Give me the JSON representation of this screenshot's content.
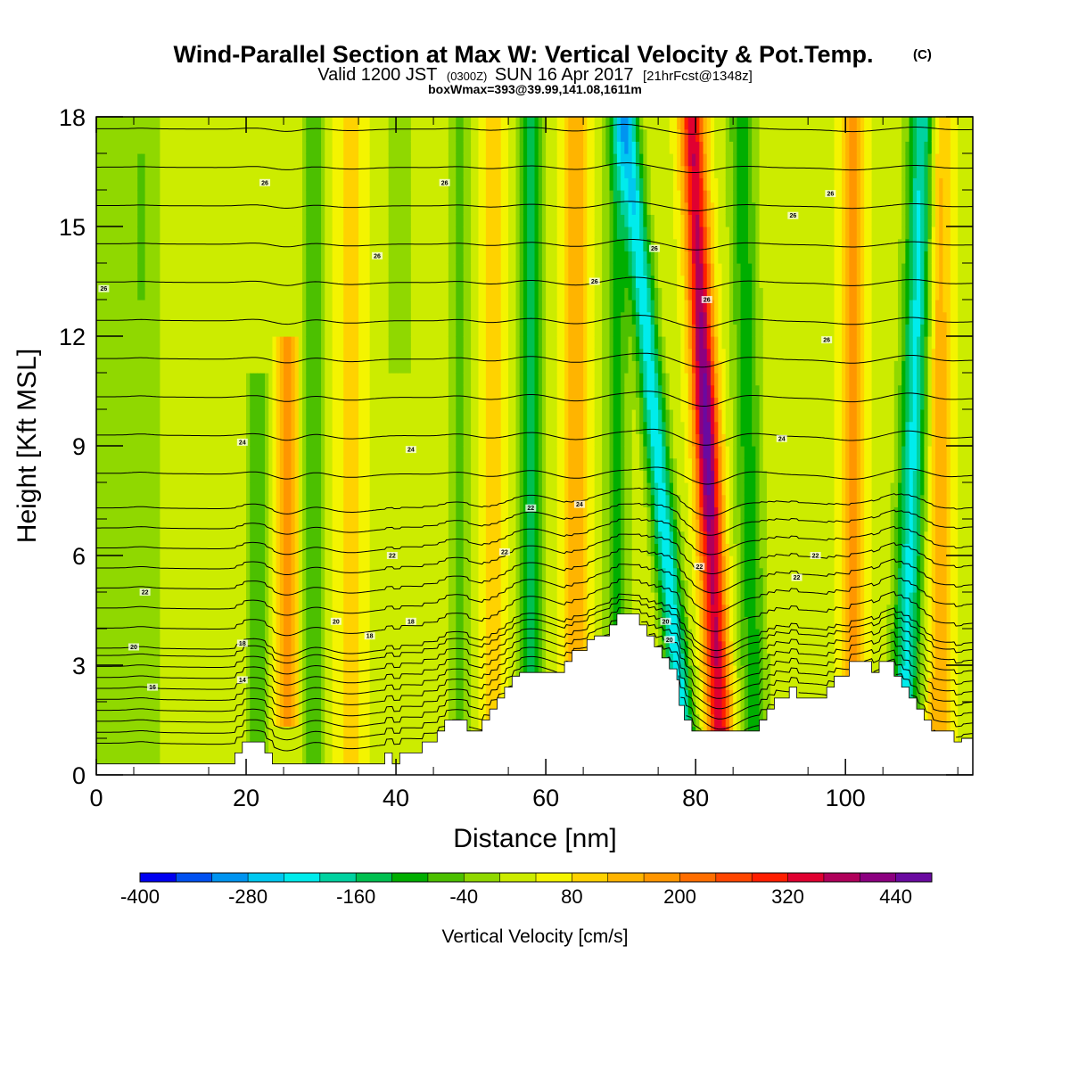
{
  "header": {
    "title": "Wind-Parallel Section at Max W: Vertical Velocity & Pot.Temp.",
    "copyright": "(C)",
    "valid_prefix": "Valid 1200 JST",
    "valid_utc": "(0300Z)",
    "valid_date": "SUN 16 Apr 2017",
    "forecast": "[21hrFcst@1348z]",
    "box_info": "boxWmax=393@39.99,141.08,1611m"
  },
  "chart_data": {
    "type": "heatmap",
    "title": "Wind-Parallel Section at Max W: Vertical Velocity & Pot.Temp.",
    "xlabel": "Distance [nm]",
    "ylabel": "Height [Kft MSL]",
    "xlim": [
      0,
      117
    ],
    "ylim": [
      0,
      18
    ],
    "x_ticks": [
      0,
      20,
      40,
      60,
      80,
      100
    ],
    "y_ticks": [
      0,
      3,
      6,
      9,
      12,
      15,
      18
    ],
    "x_tick_labels": [
      "0",
      "20",
      "40",
      "60",
      "80",
      "100"
    ],
    "y_tick_labels": [
      "0",
      "3",
      "6",
      "9",
      "12",
      "15",
      "18"
    ],
    "terrain_kft": [
      [
        0,
        0.3
      ],
      [
        18.5,
        0.3
      ],
      [
        18.5,
        0.6
      ],
      [
        19.5,
        0.6
      ],
      [
        19.5,
        0.9
      ],
      [
        22.5,
        0.9
      ],
      [
        22.5,
        0.6
      ],
      [
        23.5,
        0.6
      ],
      [
        23.5,
        0.3
      ],
      [
        38.5,
        0.3
      ],
      [
        38.5,
        0.6
      ],
      [
        39.5,
        0.6
      ],
      [
        39.5,
        0.3
      ],
      [
        40.5,
        0.3
      ],
      [
        40.5,
        0.6
      ],
      [
        43.5,
        0.6
      ],
      [
        43.5,
        0.9
      ],
      [
        45.5,
        0.9
      ],
      [
        45.5,
        1.2
      ],
      [
        46.5,
        1.2
      ],
      [
        46.5,
        1.5
      ],
      [
        49.5,
        1.5
      ],
      [
        49.5,
        1.2
      ],
      [
        51.5,
        1.2
      ],
      [
        51.5,
        1.5
      ],
      [
        52.5,
        1.5
      ],
      [
        52.5,
        1.8
      ],
      [
        53.5,
        1.8
      ],
      [
        53.5,
        2.1
      ],
      [
        54.5,
        2.1
      ],
      [
        54.5,
        2.4
      ],
      [
        55.5,
        2.4
      ],
      [
        55.5,
        2.7
      ],
      [
        56.5,
        2.7
      ],
      [
        56.5,
        2.8
      ],
      [
        62.5,
        2.8
      ],
      [
        62.5,
        3.1
      ],
      [
        63.5,
        3.1
      ],
      [
        63.5,
        3.4
      ],
      [
        65.5,
        3.4
      ],
      [
        65.5,
        3.7
      ],
      [
        66.5,
        3.7
      ],
      [
        66.5,
        3.8
      ],
      [
        68.5,
        3.8
      ],
      [
        68.5,
        4.1
      ],
      [
        69.5,
        4.1
      ],
      [
        69.5,
        4.4
      ],
      [
        72.5,
        4.4
      ],
      [
        72.5,
        4.1
      ],
      [
        73.5,
        4.1
      ],
      [
        73.5,
        3.8
      ],
      [
        74.5,
        3.8
      ],
      [
        74.5,
        3.5
      ],
      [
        75.5,
        3.5
      ],
      [
        75.5,
        3.2
      ],
      [
        76.5,
        3.2
      ],
      [
        76.5,
        2.9
      ],
      [
        77.5,
        2.9
      ],
      [
        77.5,
        2.6
      ],
      [
        77.8,
        2.6
      ],
      [
        77.8,
        1.9
      ],
      [
        78.5,
        1.9
      ],
      [
        78.5,
        1.5
      ],
      [
        79.5,
        1.5
      ],
      [
        79.5,
        1.2
      ],
      [
        88.5,
        1.2
      ],
      [
        88.5,
        1.5
      ],
      [
        89.5,
        1.5
      ],
      [
        89.5,
        1.8
      ],
      [
        90.5,
        1.8
      ],
      [
        90.5,
        2.1
      ],
      [
        92.5,
        2.1
      ],
      [
        92.5,
        2.4
      ],
      [
        93.5,
        2.4
      ],
      [
        93.5,
        2.1
      ],
      [
        97.5,
        2.1
      ],
      [
        97.5,
        2.4
      ],
      [
        98.5,
        2.4
      ],
      [
        98.5,
        2.7
      ],
      [
        100.5,
        2.7
      ],
      [
        100.5,
        3.1
      ],
      [
        103.5,
        3.1
      ],
      [
        103.5,
        2.8
      ],
      [
        104.5,
        2.8
      ],
      [
        104.5,
        3.1
      ],
      [
        106.5,
        3.1
      ],
      [
        106.5,
        2.7
      ],
      [
        107.5,
        2.7
      ],
      [
        107.5,
        2.4
      ],
      [
        108.5,
        2.4
      ],
      [
        108.5,
        2.1
      ],
      [
        109.5,
        2.1
      ],
      [
        109.5,
        1.8
      ],
      [
        110.5,
        1.8
      ],
      [
        110.5,
        1.5
      ],
      [
        111.5,
        1.5
      ],
      [
        111.5,
        1.2
      ],
      [
        114.5,
        1.2
      ],
      [
        114.5,
        0.9
      ],
      [
        115.5,
        0.9
      ],
      [
        115.5,
        1.0
      ],
      [
        117,
        1.0
      ]
    ],
    "w_features": [
      {
        "x": 2,
        "dx": 8,
        "base": -60,
        "amp": 0,
        "tilt": 0
      },
      {
        "x": 6,
        "dx": 0.8,
        "base": -40,
        "amp": 0,
        "tilt": 0,
        "ylow": 13,
        "yhigh": 17
      },
      {
        "x": 21.5,
        "dx": 1.3,
        "base": -100,
        "amp": 0,
        "tilt": 0,
        "ylow": 0.5,
        "yhigh": 11
      },
      {
        "x": 25.5,
        "dx": 1.2,
        "base": 170,
        "amp": 0,
        "tilt": 0,
        "ylow": 1.5,
        "yhigh": 12
      },
      {
        "x": 29,
        "dx": 1.2,
        "base": -110,
        "amp": 0,
        "tilt": 0
      },
      {
        "x": 34,
        "dx": 1.6,
        "base": 90,
        "amp": 0,
        "tilt": 0
      },
      {
        "x": 40.5,
        "dx": 2.5,
        "base": -40,
        "amp": 0,
        "tilt": 0,
        "ylow": 11,
        "yhigh": 18.5
      },
      {
        "x": 48.5,
        "dx": 1.2,
        "base": -100,
        "amp": 0,
        "tilt": 0
      },
      {
        "x": 53,
        "dx": 1.5,
        "base": 70,
        "amp": 0,
        "tilt": 0
      },
      {
        "x": 58,
        "dx": 1.6,
        "base": -160,
        "amp": 0,
        "tilt": 0
      },
      {
        "x": 64,
        "dx": 1.5,
        "base": 120,
        "amp": 0,
        "tilt": 0
      },
      {
        "x": 69.5,
        "dx": 1.5,
        "base": -130,
        "amp": 0,
        "tilt": 0
      },
      {
        "x": 74.8,
        "dx": 1.6,
        "base": -260,
        "amp": 0,
        "tilt": -0.45
      },
      {
        "x": 81.5,
        "dx": 1.6,
        "base": 330,
        "amp": 110,
        "tilt": -0.22,
        "ypeak": 9.5
      },
      {
        "x": 87,
        "dx": 1.8,
        "base": -130,
        "amp": 0,
        "tilt": -0.1
      },
      {
        "x": 93,
        "dx": 1.5,
        "base": 0,
        "amp": 0,
        "tilt": 0
      },
      {
        "x": 101,
        "dx": 1.6,
        "base": 140,
        "amp": 0,
        "tilt": 0
      },
      {
        "x": 109,
        "dx": 1.8,
        "base": -240,
        "amp": 0,
        "tilt": 0.15
      },
      {
        "x": 112.5,
        "dx": 1.5,
        "base": 120,
        "amp": 0,
        "tilt": 0
      }
    ],
    "theta_contour_labels": [
      {
        "text": "26",
        "x": 22.5,
        "y": 16.2
      },
      {
        "text": "26",
        "x": 46.5,
        "y": 16.2
      },
      {
        "text": "26",
        "x": 1,
        "y": 13.3
      },
      {
        "text": "26",
        "x": 37.5,
        "y": 14.2
      },
      {
        "text": "26",
        "x": 66.5,
        "y": 13.5
      },
      {
        "text": "26",
        "x": 74.5,
        "y": 14.4
      },
      {
        "text": "26",
        "x": 81.5,
        "y": 13.0
      },
      {
        "text": "26",
        "x": 93,
        "y": 15.3
      },
      {
        "text": "26",
        "x": 98,
        "y": 15.9
      },
      {
        "text": "26",
        "x": 97.5,
        "y": 11.9
      },
      {
        "text": "24",
        "x": 19.5,
        "y": 9.1
      },
      {
        "text": "24",
        "x": 42,
        "y": 8.9
      },
      {
        "text": "24",
        "x": 64.5,
        "y": 7.4
      },
      {
        "text": "24",
        "x": 91.5,
        "y": 9.2
      },
      {
        "text": "22",
        "x": 6.5,
        "y": 5.0
      },
      {
        "text": "22",
        "x": 39.5,
        "y": 6.0
      },
      {
        "text": "22",
        "x": 58,
        "y": 7.3
      },
      {
        "text": "22",
        "x": 54.5,
        "y": 6.1
      },
      {
        "text": "22",
        "x": 80.5,
        "y": 5.7
      },
      {
        "text": "22",
        "x": 96,
        "y": 6.0
      },
      {
        "text": "22",
        "x": 93.5,
        "y": 5.4
      },
      {
        "text": "20",
        "x": 5,
        "y": 3.5
      },
      {
        "text": "20",
        "x": 32,
        "y": 4.2
      },
      {
        "text": "20",
        "x": 76,
        "y": 4.2
      },
      {
        "text": "20",
        "x": 76.5,
        "y": 3.7
      },
      {
        "text": "18",
        "x": 19.5,
        "y": 3.6
      },
      {
        "text": "18",
        "x": 42,
        "y": 4.2
      },
      {
        "text": "18",
        "x": 36.5,
        "y": 3.8
      },
      {
        "text": "16",
        "x": 7.5,
        "y": 2.4
      },
      {
        "text": "14",
        "x": 19.5,
        "y": 2.6
      }
    ],
    "colorbar": {
      "title": "Vertical Velocity [cm/s]",
      "min": -400,
      "max": 480,
      "step": 40,
      "tick_labels": [
        "-400",
        "-280",
        "-160",
        "-40",
        "80",
        "200",
        "320",
        "440"
      ],
      "colors": [
        "#0000f0",
        "#0050f0",
        "#0094f0",
        "#00c8f0",
        "#00ecec",
        "#00d2a0",
        "#00c050",
        "#00ae00",
        "#4cc000",
        "#90d800",
        "#ccec00",
        "#f4f400",
        "#ffd200",
        "#ffb400",
        "#ff9600",
        "#ff6e00",
        "#ff4600",
        "#ff1e00",
        "#e00030",
        "#b0005a",
        "#8c0080",
        "#6a0aa0"
      ]
    }
  }
}
